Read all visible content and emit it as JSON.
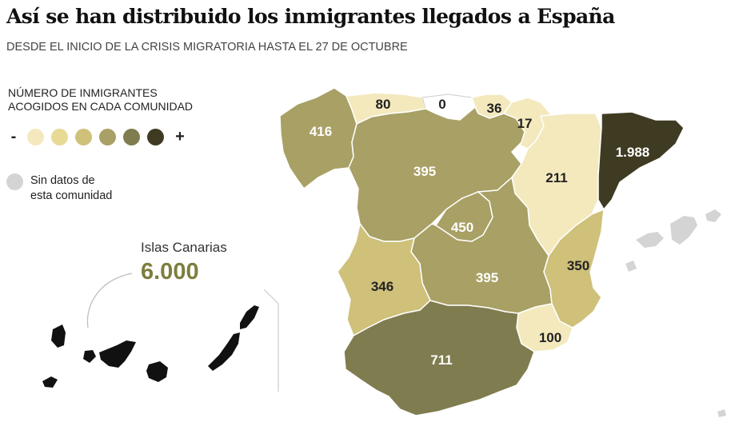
{
  "header": {
    "title": "Así se han distribuido los inmigrantes llegados a España",
    "subtitle": "DESDE EL INICIO DE LA CRISIS MIGRATORIA HASTA EL 27 DE OCTUBRE"
  },
  "legend": {
    "title_line1": "NÚMERO DE INMIGRANTES",
    "title_line2": "ACOGIDOS EN CADA COMUNIDAD",
    "min_sign": "-",
    "max_sign": "+",
    "scale_colors": [
      "#f3e9bd",
      "#e7da95",
      "#cfc07a",
      "#a8a065",
      "#7f7c4f",
      "#3f3a22"
    ],
    "no_data_line1": "Sin datos de",
    "no_data_line2": "esta comunidad",
    "no_data_color": "#d4d4d4"
  },
  "canarias": {
    "label": "Islas Canarias",
    "value": "6.000",
    "color": "#7d7e3e"
  },
  "regions": [
    {
      "name": "Galicia",
      "value": "416"
    },
    {
      "name": "Asturias",
      "value": "80"
    },
    {
      "name": "Cantabria",
      "value": "0"
    },
    {
      "name": "País Vasco",
      "value": "36"
    },
    {
      "name": "Navarra",
      "value": "17"
    },
    {
      "name": "La Rioja",
      "value": ""
    },
    {
      "name": "Aragón",
      "value": "211"
    },
    {
      "name": "Cataluña",
      "value": "1.988"
    },
    {
      "name": "Castilla y León",
      "value": "395"
    },
    {
      "name": "Comunidad de Madrid",
      "value": "450"
    },
    {
      "name": "Castilla-La Mancha",
      "value": "395"
    },
    {
      "name": "Comunidad Valenciana",
      "value": "350"
    },
    {
      "name": "Extremadura",
      "value": "346"
    },
    {
      "name": "Región de Murcia",
      "value": "100"
    },
    {
      "name": "Andalucía",
      "value": "711"
    },
    {
      "name": "Islas Baleares",
      "value": ""
    }
  ]
}
